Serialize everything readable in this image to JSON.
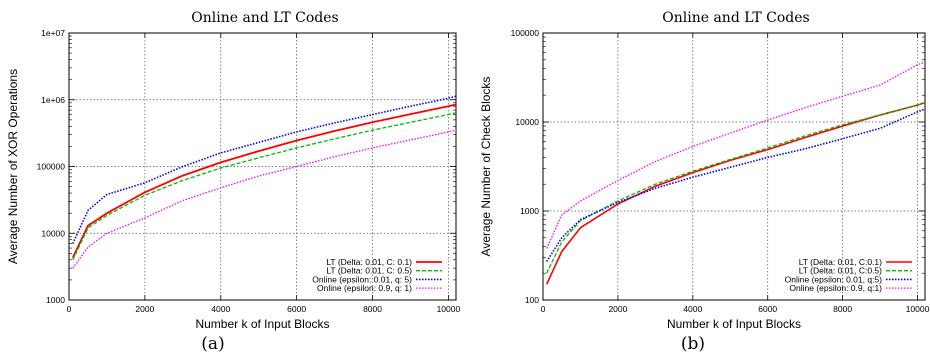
{
  "chart_data": [
    {
      "type": "line",
      "title": "Online and LT Codes",
      "xlabel": "Number k of Input Blocks",
      "ylabel": "Average Number of XOR Operations",
      "caption": "(a)",
      "xlim": [
        0,
        10200
      ],
      "ylim": [
        1000,
        10000000
      ],
      "yscale": "log",
      "xticks": [
        0,
        2000,
        4000,
        6000,
        8000,
        10000
      ],
      "xtick_labels": [
        "0",
        "2000",
        "4000",
        "6000",
        "8000",
        "10000"
      ],
      "yticks": [
        1000,
        10000,
        100000,
        1000000,
        10000000
      ],
      "ytick_labels": [
        "1000",
        "10000",
        "100000",
        "1e+06",
        "1e+07"
      ],
      "grid": true,
      "legend_position": "bottom-right",
      "x": [
        100,
        500,
        1000,
        2000,
        3000,
        4000,
        5000,
        6000,
        7000,
        8000,
        9000,
        10000,
        10200
      ],
      "series": [
        {
          "name": "LT (Delta: 0.01, C: 0.1)",
          "color": "#ff0000",
          "dash": "solid",
          "width": 1.8,
          "values": [
            4300,
            13000,
            20000,
            41000,
            73000,
            115000,
            170000,
            245000,
            340000,
            460000,
            610000,
            800000,
            850000
          ]
        },
        {
          "name": "LT (Delta: 0.01, C: 0.5)",
          "color": "#00bb00",
          "dash": "dashed",
          "width": 1.3,
          "values": [
            4000,
            12000,
            18500,
            37000,
            62000,
            95000,
            135000,
            190000,
            260000,
            350000,
            460000,
            600000,
            640000
          ]
        },
        {
          "name": "Online (epsilon: 0.01, q: 5)",
          "color": "#0000ee",
          "dash": "dotted",
          "width": 1.6,
          "values": [
            7000,
            22000,
            38000,
            57000,
            100000,
            160000,
            230000,
            330000,
            450000,
            600000,
            800000,
            1050000,
            1130000
          ]
        },
        {
          "name": "Online (epsilon: 0.9, q: 1)",
          "color": "#ff00ff",
          "dash": "dotted",
          "width": 1.3,
          "values": [
            3000,
            6200,
            10000,
            17000,
            31000,
            48000,
            72000,
            100000,
            140000,
            190000,
            250000,
            330000,
            350000
          ]
        }
      ]
    },
    {
      "type": "line",
      "title": "Online and LT Codes",
      "xlabel": "Number k of Input Blocks",
      "ylabel": "Average Number of Check Blocks",
      "caption": "(b)",
      "xlim": [
        0,
        10200
      ],
      "ylim": [
        100,
        100000
      ],
      "yscale": "log",
      "xticks": [
        0,
        2000,
        4000,
        6000,
        8000,
        10000
      ],
      "xtick_labels": [
        "0",
        "2000",
        "4000",
        "6000",
        "8000",
        "10000"
      ],
      "yticks": [
        100,
        1000,
        10000,
        100000
      ],
      "ytick_labels": [
        "100",
        "1000",
        "10000",
        "100000"
      ],
      "grid": true,
      "legend_position": "bottom-right",
      "x": [
        100,
        500,
        1000,
        2000,
        3000,
        4000,
        5000,
        6000,
        7000,
        8000,
        9000,
        10000,
        10200
      ],
      "series": [
        {
          "name": "LT (Delta: 0.01, C:0.1)",
          "color": "#ff0000",
          "dash": "solid",
          "width": 1.6,
          "values": [
            150,
            350,
            650,
            1200,
            1900,
            2700,
            3700,
            4900,
            6700,
            9000,
            12000,
            15500,
            16500
          ]
        },
        {
          "name": "LT (Delta: 0.01, C:0.5)",
          "color": "#00bb00",
          "dash": "dashed",
          "width": 1.3,
          "values": [
            200,
            450,
            780,
            1300,
            2000,
            2800,
            3800,
            5100,
            7000,
            9300,
            12000,
            15500,
            16500
          ]
        },
        {
          "name": "Online (epsilon: 0.01, q:5)",
          "color": "#0000ee",
          "dash": "dotted",
          "width": 1.6,
          "values": [
            270,
            500,
            800,
            1250,
            1800,
            2400,
            3100,
            4000,
            5000,
            6500,
            8500,
            13000,
            14000
          ]
        },
        {
          "name": "Online (epsilon: 0.9, q:1)",
          "color": "#ff00ff",
          "dash": "dotted",
          "width": 1.3,
          "values": [
            380,
            900,
            1300,
            2200,
            3600,
            5300,
            7500,
            10500,
            14500,
            19500,
            26000,
            44000,
            47000
          ]
        }
      ]
    }
  ]
}
